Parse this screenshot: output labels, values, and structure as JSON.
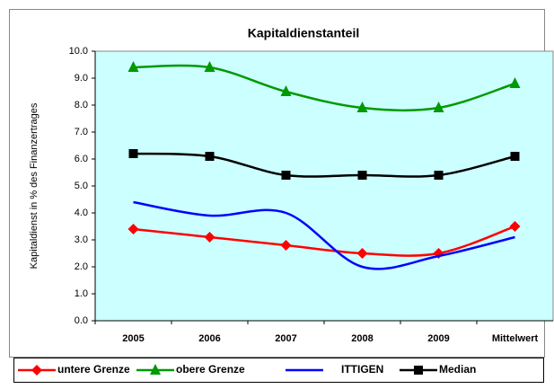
{
  "chart_data": {
    "type": "line",
    "title": "Kapitaldienstanteil",
    "ylabel": "Kapitaldienst in % des Finanzertrages",
    "categories": [
      "2005",
      "2006",
      "2007",
      "2008",
      "2009",
      "Mittelwert"
    ],
    "series": [
      {
        "name": "untere Grenze",
        "color": "#ff0000",
        "marker": "diamond",
        "values": [
          3.4,
          3.1,
          2.8,
          2.5,
          2.5,
          3.5
        ]
      },
      {
        "name": "obere Grenze",
        "color": "#009900",
        "marker": "triangle",
        "values": [
          9.4,
          9.4,
          8.5,
          7.9,
          7.9,
          8.8
        ]
      },
      {
        "name": "ITTIGEN",
        "color": "#0000ff",
        "marker": "none",
        "values": [
          4.4,
          3.9,
          4.0,
          2.0,
          2.4,
          3.1
        ]
      },
      {
        "name": "Median",
        "color": "#000000",
        "marker": "square",
        "values": [
          6.2,
          6.1,
          5.4,
          5.4,
          5.4,
          6.1
        ]
      }
    ],
    "ylim": [
      0,
      10
    ],
    "yticks": [
      {
        "value": 0,
        "label": "0.0"
      },
      {
        "value": 1,
        "label": "1.0"
      },
      {
        "value": 2,
        "label": "2.0"
      },
      {
        "value": 3,
        "label": "3.0"
      },
      {
        "value": 4,
        "label": "4.0"
      },
      {
        "value": 5,
        "label": "5.0"
      },
      {
        "value": 6,
        "label": "6.0"
      },
      {
        "value": 7,
        "label": "7.0"
      },
      {
        "value": 8,
        "label": "8.0"
      },
      {
        "value": 9,
        "label": "9.0"
      },
      {
        "value": 10,
        "label": "10.0"
      }
    ],
    "grid": false,
    "smooth": true,
    "legend": "bottom",
    "plot_background": "#ccffff"
  }
}
